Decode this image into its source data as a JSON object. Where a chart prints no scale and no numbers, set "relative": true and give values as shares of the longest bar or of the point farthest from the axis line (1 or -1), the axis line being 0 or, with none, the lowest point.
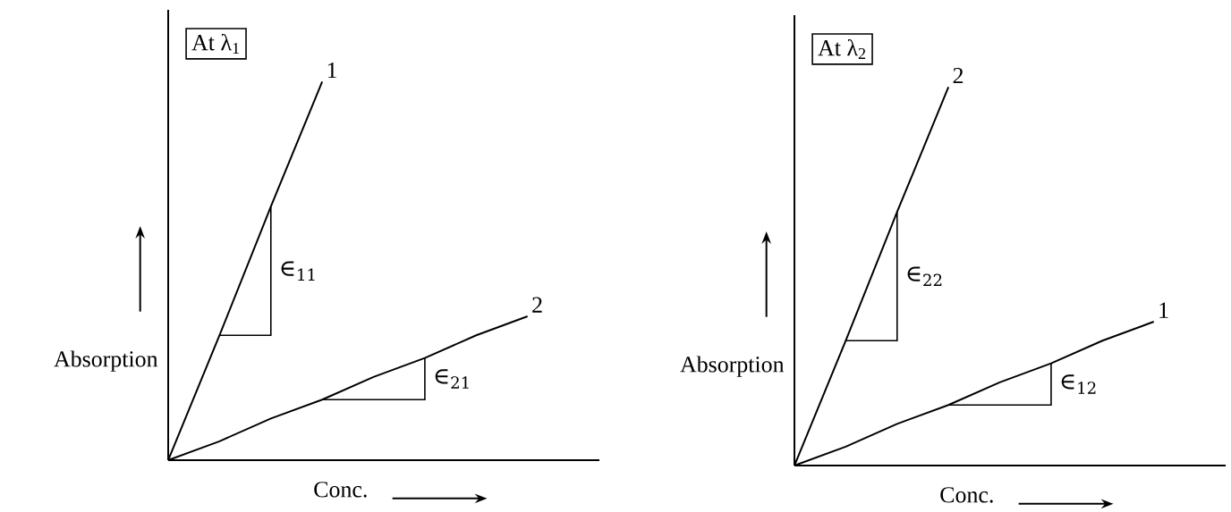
{
  "chart_data": [
    {
      "type": "line",
      "relative": true,
      "title": "At λ$_{1}$",
      "xlabel": "Conc.",
      "ylabel": "Absorption",
      "categories": [
        null,
        null,
        null,
        null,
        null,
        null,
        null,
        null
      ],
      "series": [
        {
          "name": "1",
          "color": "#000000",
          "values": [
            0,
            0.33,
            0.67,
            1,
            null,
            null,
            null,
            null
          ]
        },
        {
          "name": "2",
          "color": "#000000",
          "values": [
            0,
            0.05,
            0.11,
            0.16,
            0.22,
            0.27,
            0.33,
            0.38
          ]
        }
      ],
      "annotations": [
        "∈$_{11}$",
        "∈$_{21}$"
      ]
    },
    {
      "type": "line",
      "relative": true,
      "title": "At λ$_{2}$",
      "xlabel": "Conc.",
      "ylabel": "Absorption",
      "categories": [
        null,
        null,
        null,
        null,
        null,
        null,
        null,
        null
      ],
      "series": [
        {
          "name": "2",
          "color": "#000000",
          "values": [
            0,
            0.33,
            0.67,
            1,
            null,
            null,
            null,
            null
          ]
        },
        {
          "name": "1",
          "color": "#000000",
          "values": [
            0,
            0.05,
            0.11,
            0.16,
            0.22,
            0.27,
            0.33,
            0.38
          ]
        }
      ],
      "annotations": [
        "∈$_{22}$",
        "∈$_{12}$"
      ]
    }
  ]
}
